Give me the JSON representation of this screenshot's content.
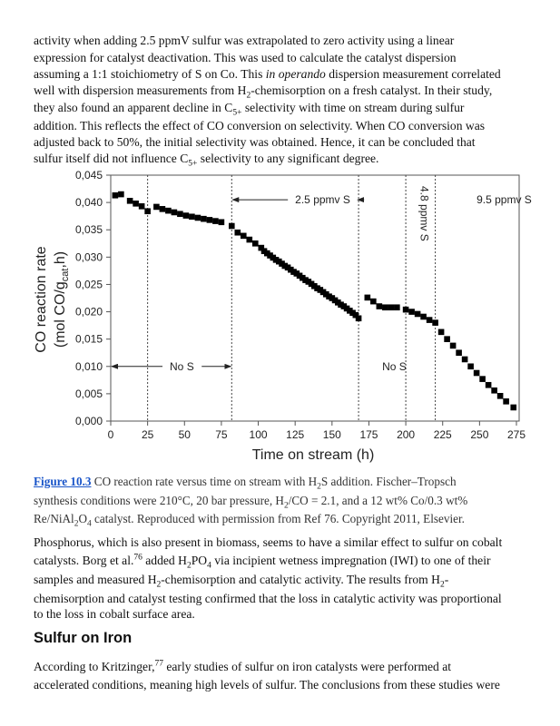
{
  "paragraph1": [
    [
      "activity when adding 2.5 ppmV sulfur was extrapolated to zero activity using a linear"
    ],
    [
      "expression for catalyst deactivation. This was used to calculate the catalyst dispersion"
    ],
    [
      "assuming a 1:1 stoichiometry of S on Co. This ",
      {
        "i": "in operando"
      },
      " dispersion measurement correlated"
    ],
    [
      "well with dispersion measurements from H",
      {
        "sub": "2"
      },
      "-chemisorption on a fresh catalyst. In their study,"
    ],
    [
      "they also found an apparent decline in C",
      {
        "sub": "5+"
      },
      " selectivity with time on stream during sulfur"
    ],
    [
      "addition. This reflects the effect of CO conversion on selectivity. When CO conversion was"
    ],
    [
      "adjusted back to 50%, the initial selectivity was obtained. Hence, it can be concluded that"
    ],
    [
      "sulfur itself did not influence C",
      {
        "sub": "5+"
      },
      " selectivity to any significant degree."
    ]
  ],
  "caption": [
    [
      {
        "link": "Figure 10.3"
      },
      " CO reaction rate versus time on stream with H",
      {
        "sub": "2"
      },
      "S addition. Fischer–Tropsch"
    ],
    [
      "synthesis conditions were 210°C, 20 bar pressure, H",
      {
        "sub": "2"
      },
      "/CO = 2.1, and a 12 wt% Co/0.3 wt%"
    ],
    [
      "Re/NiAl",
      {
        "sub": "2"
      },
      "O",
      {
        "sub": "4"
      },
      " catalyst. Reproduced with permission from Ref 76. Copyright 2011, Elsevier."
    ]
  ],
  "paragraph2": [
    [
      "Phosphorus, which is also present in biomass, seems to have a similar effect to sulfur on cobalt"
    ],
    [
      "catalysts. Borg et al.",
      {
        "sup": "76"
      },
      " added H",
      {
        "sub": "2"
      },
      "PO",
      {
        "sub": "4"
      },
      " via incipient wetness impregnation (IWI) to one of their"
    ],
    [
      "samples and measured H",
      {
        "sub": "2"
      },
      "-chemisorption and catalytic activity. The results from H",
      {
        "sub": "2"
      },
      "-"
    ],
    [
      "chemisorption and catalyst testing confirmed that the loss in catalytic activity was proportional"
    ],
    [
      "to the loss in cobalt surface area."
    ]
  ],
  "heading": "Sulfur on Iron",
  "paragraph3": [
    [
      "According to Kritzinger,",
      {
        "sup": "77"
      },
      " early studies of sulfur on iron catalysts were performed at"
    ],
    [
      "accelerated conditions, meaning high levels of sulfur. The conclusions from these studies were"
    ]
  ],
  "chart_data": {
    "type": "scatter",
    "title": "",
    "xlabel": "Time on stream (h)",
    "ylabel": "CO reaction rate",
    "ylabel2": "(mol CO/g",
    "ylabel2_sub": "cat",
    "ylabel2_end": ",h)",
    "xlim": [
      0,
      275
    ],
    "ylim": [
      0,
      0.045
    ],
    "xticks": [
      0,
      25,
      50,
      75,
      100,
      125,
      150,
      175,
      200,
      225,
      250,
      275
    ],
    "xtick_labels": [
      "0",
      "25",
      "50",
      "75",
      "100",
      "125",
      "150",
      "175",
      "200",
      "225",
      "250",
      "275"
    ],
    "yticks": [
      0,
      0.005,
      0.01,
      0.015,
      0.02,
      0.025,
      0.03,
      0.035,
      0.04,
      0.045
    ],
    "ytick_labels": [
      "0,000",
      "0,005",
      "0,010",
      "0,015",
      "0,020",
      "0,025",
      "0,030",
      "0,035",
      "0,040",
      "0,045"
    ],
    "grid": false,
    "phase_boundaries": [
      25,
      82,
      168,
      200,
      220
    ],
    "annotations": [
      {
        "text": "No S",
        "x": 40,
        "y": 0.01,
        "arrow_from": 0,
        "arrow_to": 82
      },
      {
        "text": "2.5 ppmv S",
        "x": 125,
        "y": 0.0405,
        "arrow_from": 82,
        "arrow_to": 168
      },
      {
        "text": "No S",
        "x": 184,
        "y": 0.01
      },
      {
        "text": "4.8 ppmv S",
        "x": 210,
        "y": 0.038,
        "rotated": true
      },
      {
        "text": "9.5 ppmv S",
        "x": 248,
        "y": 0.0405
      }
    ],
    "series": [
      {
        "name": "CO reaction rate",
        "x": [
          3,
          7,
          13,
          17,
          21,
          25,
          31,
          35,
          39,
          43,
          47,
          51,
          55,
          59,
          63,
          67,
          71,
          75,
          82,
          86,
          90,
          94,
          98,
          102,
          104,
          106,
          108,
          110,
          112,
          114,
          116,
          118,
          120,
          122,
          124,
          126,
          128,
          130,
          132,
          134,
          136,
          138,
          140,
          142,
          144,
          146,
          148,
          150,
          152,
          154,
          156,
          158,
          160,
          162,
          164,
          166,
          168,
          174,
          178,
          182,
          186,
          190,
          194,
          200,
          204,
          208,
          212,
          216,
          220,
          224,
          228,
          232,
          236,
          240,
          244,
          248,
          252,
          256,
          260,
          264,
          268,
          273
        ],
        "y": [
          0.0413,
          0.0415,
          0.0403,
          0.0398,
          0.0393,
          0.0384,
          0.0392,
          0.0388,
          0.0385,
          0.0382,
          0.0379,
          0.0376,
          0.0374,
          0.0372,
          0.037,
          0.0368,
          0.0366,
          0.0364,
          0.0357,
          0.0345,
          0.0339,
          0.0332,
          0.0325,
          0.0317,
          0.0311,
          0.0307,
          0.0303,
          0.0299,
          0.0295,
          0.0292,
          0.0288,
          0.0284,
          0.0281,
          0.0277,
          0.0273,
          0.027,
          0.0266,
          0.0262,
          0.0258,
          0.0255,
          0.0251,
          0.0247,
          0.0243,
          0.024,
          0.0236,
          0.0232,
          0.0228,
          0.0225,
          0.0221,
          0.0217,
          0.0213,
          0.021,
          0.0206,
          0.0202,
          0.0198,
          0.0194,
          0.0188,
          0.0226,
          0.0219,
          0.021,
          0.0208,
          0.0208,
          0.0208,
          0.0204,
          0.02,
          0.0196,
          0.0191,
          0.0185,
          0.018,
          0.0163,
          0.015,
          0.0138,
          0.0125,
          0.0113,
          0.01,
          0.0088,
          0.0077,
          0.0066,
          0.0056,
          0.0046,
          0.0036,
          0.0025
        ]
      }
    ]
  }
}
